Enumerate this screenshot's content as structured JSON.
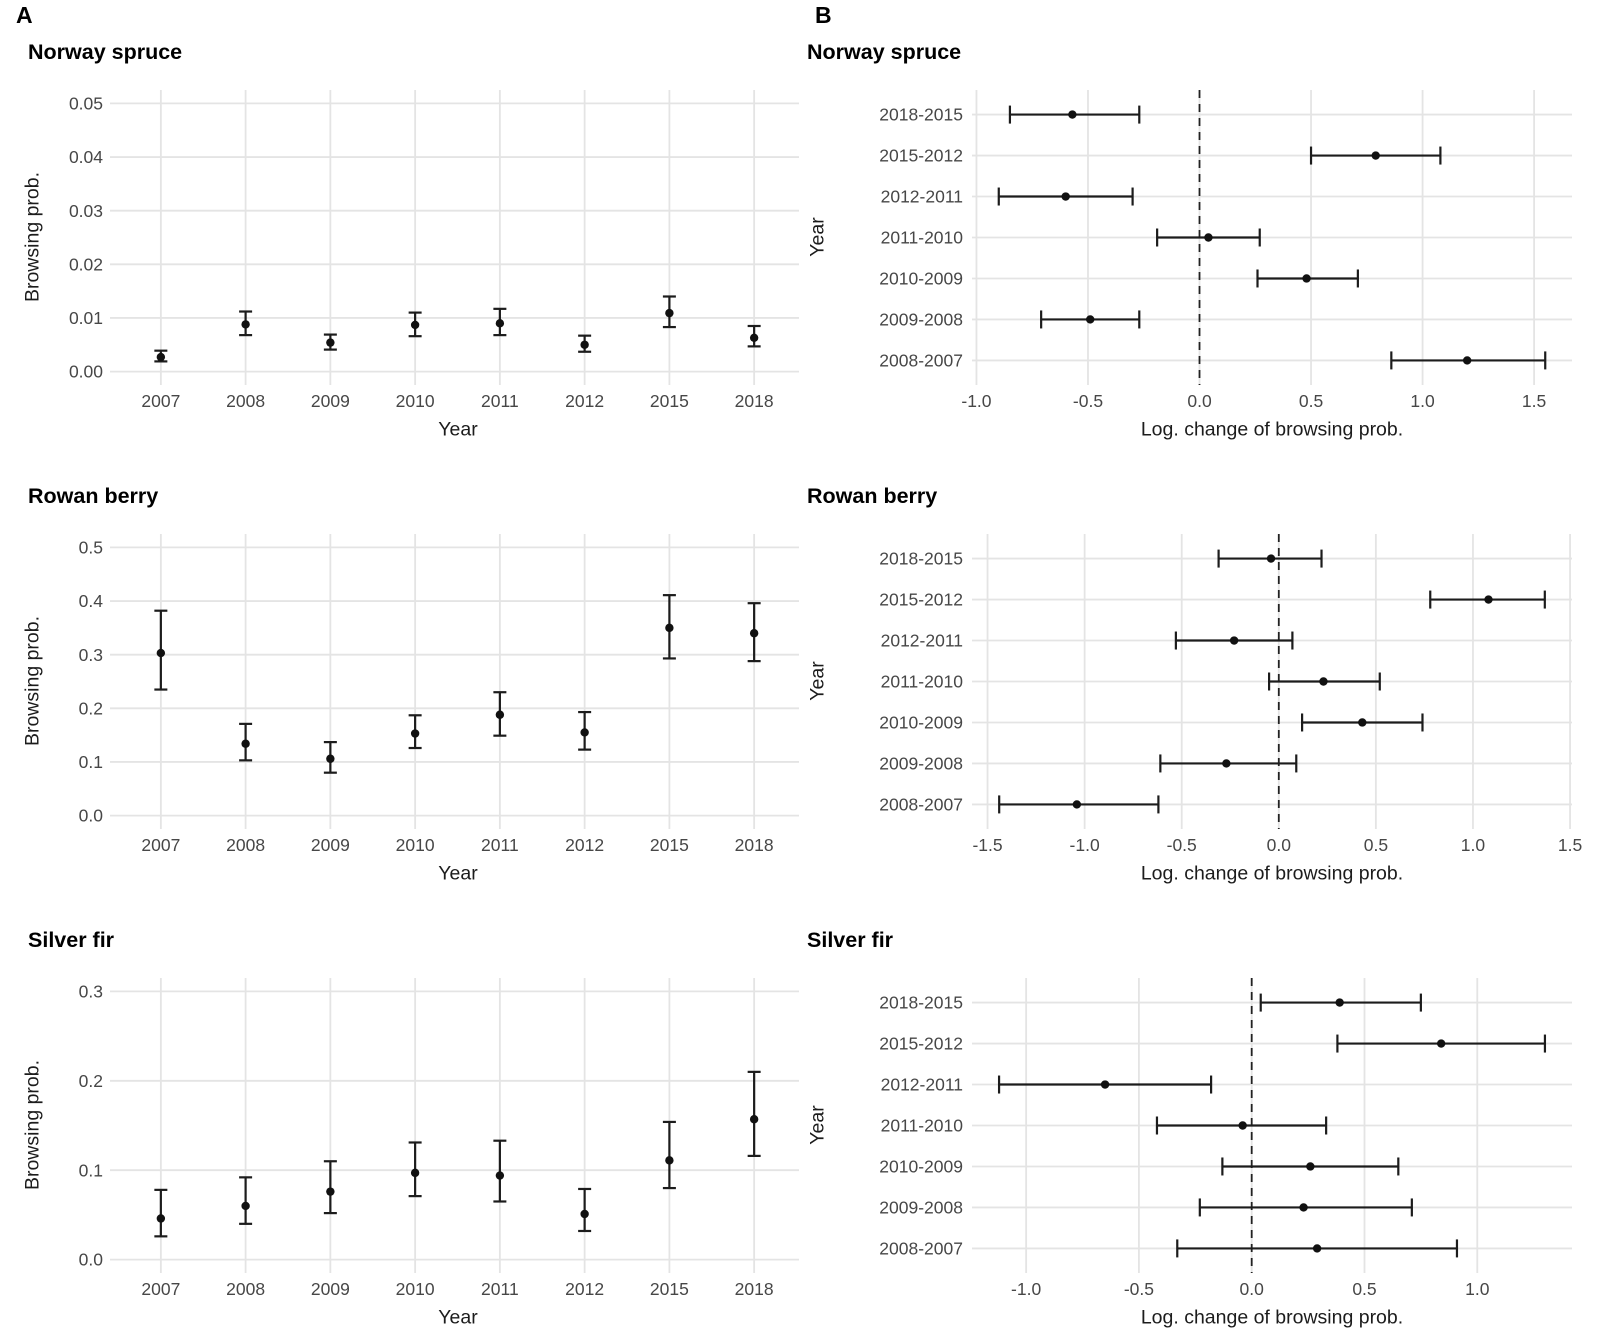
{
  "figure": {
    "panel_labels": {
      "a": "A",
      "b": "B"
    },
    "colors": {
      "background": "#ffffff",
      "grid": "#e4e4e4",
      "tick_text": "#474747",
      "axis_title_text": "#1c1c1c",
      "title_text": "#000000",
      "point": "#111111",
      "error_bar": "#1c1c1c",
      "zero_line": "#222222"
    }
  },
  "chart_data": [
    {
      "id": "A-norway-spruce",
      "type": "scatter",
      "error_bars": true,
      "orientation": "vertical",
      "title": "Norway spruce",
      "xlabel": "Year",
      "ylabel": "Browsing prob.",
      "grid": "major-on",
      "legend": "none",
      "categories": [
        "2007",
        "2008",
        "2009",
        "2010",
        "2011",
        "2012",
        "2015",
        "2018"
      ],
      "values": [
        0.0027,
        0.0088,
        0.0054,
        0.0087,
        0.009,
        0.005,
        0.0109,
        0.0063
      ],
      "lower": [
        0.0019,
        0.0068,
        0.0041,
        0.0066,
        0.0068,
        0.0037,
        0.0083,
        0.0047
      ],
      "upper": [
        0.0039,
        0.0112,
        0.0069,
        0.011,
        0.0117,
        0.0067,
        0.014,
        0.0085
      ],
      "yticks": [
        0,
        0.01,
        0.02,
        0.03,
        0.04,
        0.05
      ],
      "ytick_labels": [
        "0.00",
        "0.01",
        "0.02",
        "0.03",
        "0.04",
        "0.05"
      ],
      "ylim": [
        -0.0025,
        0.0525
      ]
    },
    {
      "id": "B-norway-spruce",
      "type": "scatter",
      "error_bars": true,
      "orientation": "horizontal",
      "title": "Norway spruce",
      "xlabel": "Log. change of browsing prob.",
      "ylabel": "Year",
      "grid": "major-on",
      "legend": "none",
      "zero_line_dashed": true,
      "categories": [
        "2018-2015",
        "2015-2012",
        "2012-2011",
        "2011-2010",
        "2010-2009",
        "2009-2008",
        "2008-2007"
      ],
      "values": [
        -0.57,
        0.79,
        -0.6,
        0.04,
        0.48,
        -0.49,
        1.2
      ],
      "lower": [
        -0.85,
        0.5,
        -0.9,
        -0.19,
        0.26,
        -0.71,
        0.86
      ],
      "upper": [
        -0.27,
        1.08,
        -0.3,
        0.27,
        0.71,
        -0.27,
        1.55
      ],
      "xticks": [
        -1.0,
        -0.5,
        0.0,
        0.5,
        1.0,
        1.5
      ],
      "xtick_labels": [
        "-1.0",
        "-0.5",
        "0.0",
        "0.5",
        "1.0",
        "1.5"
      ],
      "xlim": [
        -1.02,
        1.67
      ]
    },
    {
      "id": "A-rowan-berry",
      "type": "scatter",
      "error_bars": true,
      "orientation": "vertical",
      "title": "Rowan berry",
      "xlabel": "Year",
      "ylabel": "Browsing prob.",
      "grid": "major-on",
      "legend": "none",
      "categories": [
        "2007",
        "2008",
        "2009",
        "2010",
        "2011",
        "2012",
        "2015",
        "2018"
      ],
      "values": [
        0.303,
        0.134,
        0.106,
        0.153,
        0.188,
        0.155,
        0.35,
        0.34
      ],
      "lower": [
        0.235,
        0.103,
        0.08,
        0.126,
        0.149,
        0.123,
        0.293,
        0.288
      ],
      "upper": [
        0.382,
        0.171,
        0.137,
        0.187,
        0.23,
        0.193,
        0.411,
        0.396
      ],
      "yticks": [
        0,
        0.1,
        0.2,
        0.3,
        0.4,
        0.5
      ],
      "ytick_labels": [
        "0.0",
        "0.1",
        "0.2",
        "0.3",
        "0.4",
        "0.5"
      ],
      "ylim": [
        -0.025,
        0.525
      ]
    },
    {
      "id": "B-rowan-berry",
      "type": "scatter",
      "error_bars": true,
      "orientation": "horizontal",
      "title": "Rowan berry",
      "xlabel": "Log. change of browsing prob.",
      "ylabel": "Year",
      "grid": "major-on",
      "legend": "none",
      "zero_line_dashed": true,
      "categories": [
        "2018-2015",
        "2015-2012",
        "2012-2011",
        "2011-2010",
        "2010-2009",
        "2009-2008",
        "2008-2007"
      ],
      "values": [
        -0.04,
        1.08,
        -0.23,
        0.23,
        0.43,
        -0.27,
        -1.04
      ],
      "lower": [
        -0.31,
        0.78,
        -0.53,
        -0.05,
        0.12,
        -0.61,
        -1.44
      ],
      "upper": [
        0.22,
        1.37,
        0.07,
        0.52,
        0.74,
        0.09,
        -0.62
      ],
      "xticks": [
        -1.5,
        -1.0,
        -0.5,
        0.0,
        0.5,
        1.0,
        1.5
      ],
      "xtick_labels": [
        "-1.5",
        "-1.0",
        "-0.5",
        "0.0",
        "0.5",
        "1.0",
        "1.5"
      ],
      "xlim": [
        -1.58,
        1.51
      ]
    },
    {
      "id": "A-silver-fir",
      "type": "scatter",
      "error_bars": true,
      "orientation": "vertical",
      "title": "Silver fir",
      "xlabel": "Year",
      "ylabel": "Browsing prob.",
      "grid": "major-on",
      "legend": "none",
      "categories": [
        "2007",
        "2008",
        "2009",
        "2010",
        "2011",
        "2012",
        "2015",
        "2018"
      ],
      "values": [
        0.046,
        0.06,
        0.076,
        0.097,
        0.094,
        0.051,
        0.111,
        0.157
      ],
      "lower": [
        0.026,
        0.04,
        0.052,
        0.071,
        0.065,
        0.032,
        0.08,
        0.116
      ],
      "upper": [
        0.078,
        0.092,
        0.11,
        0.131,
        0.133,
        0.079,
        0.154,
        0.21
      ],
      "yticks": [
        0,
        0.1,
        0.2,
        0.3
      ],
      "ytick_labels": [
        "0.0",
        "0.1",
        "0.2",
        "0.3"
      ],
      "ylim": [
        -0.015,
        0.315
      ]
    },
    {
      "id": "B-silver-fir",
      "type": "scatter",
      "error_bars": true,
      "orientation": "horizontal",
      "title": "Silver fir",
      "xlabel": "Log. change of browsing prob.",
      "ylabel": "Year",
      "grid": "major-on",
      "legend": "none",
      "zero_line_dashed": true,
      "categories": [
        "2018-2015",
        "2015-2012",
        "2012-2011",
        "2011-2010",
        "2010-2009",
        "2009-2008",
        "2008-2007"
      ],
      "values": [
        0.39,
        0.84,
        -0.65,
        -0.04,
        0.26,
        0.23,
        0.29
      ],
      "lower": [
        0.04,
        0.38,
        -1.12,
        -0.42,
        -0.13,
        -0.23,
        -0.33
      ],
      "upper": [
        0.75,
        1.3,
        -0.18,
        0.33,
        0.65,
        0.71,
        0.91
      ],
      "xticks": [
        -1.0,
        -0.5,
        0.0,
        0.5,
        1.0
      ],
      "xtick_labels": [
        "-1.0",
        "-0.5",
        "0.0",
        "0.5",
        "1.0"
      ],
      "xlim": [
        -1.24,
        1.42
      ]
    }
  ]
}
